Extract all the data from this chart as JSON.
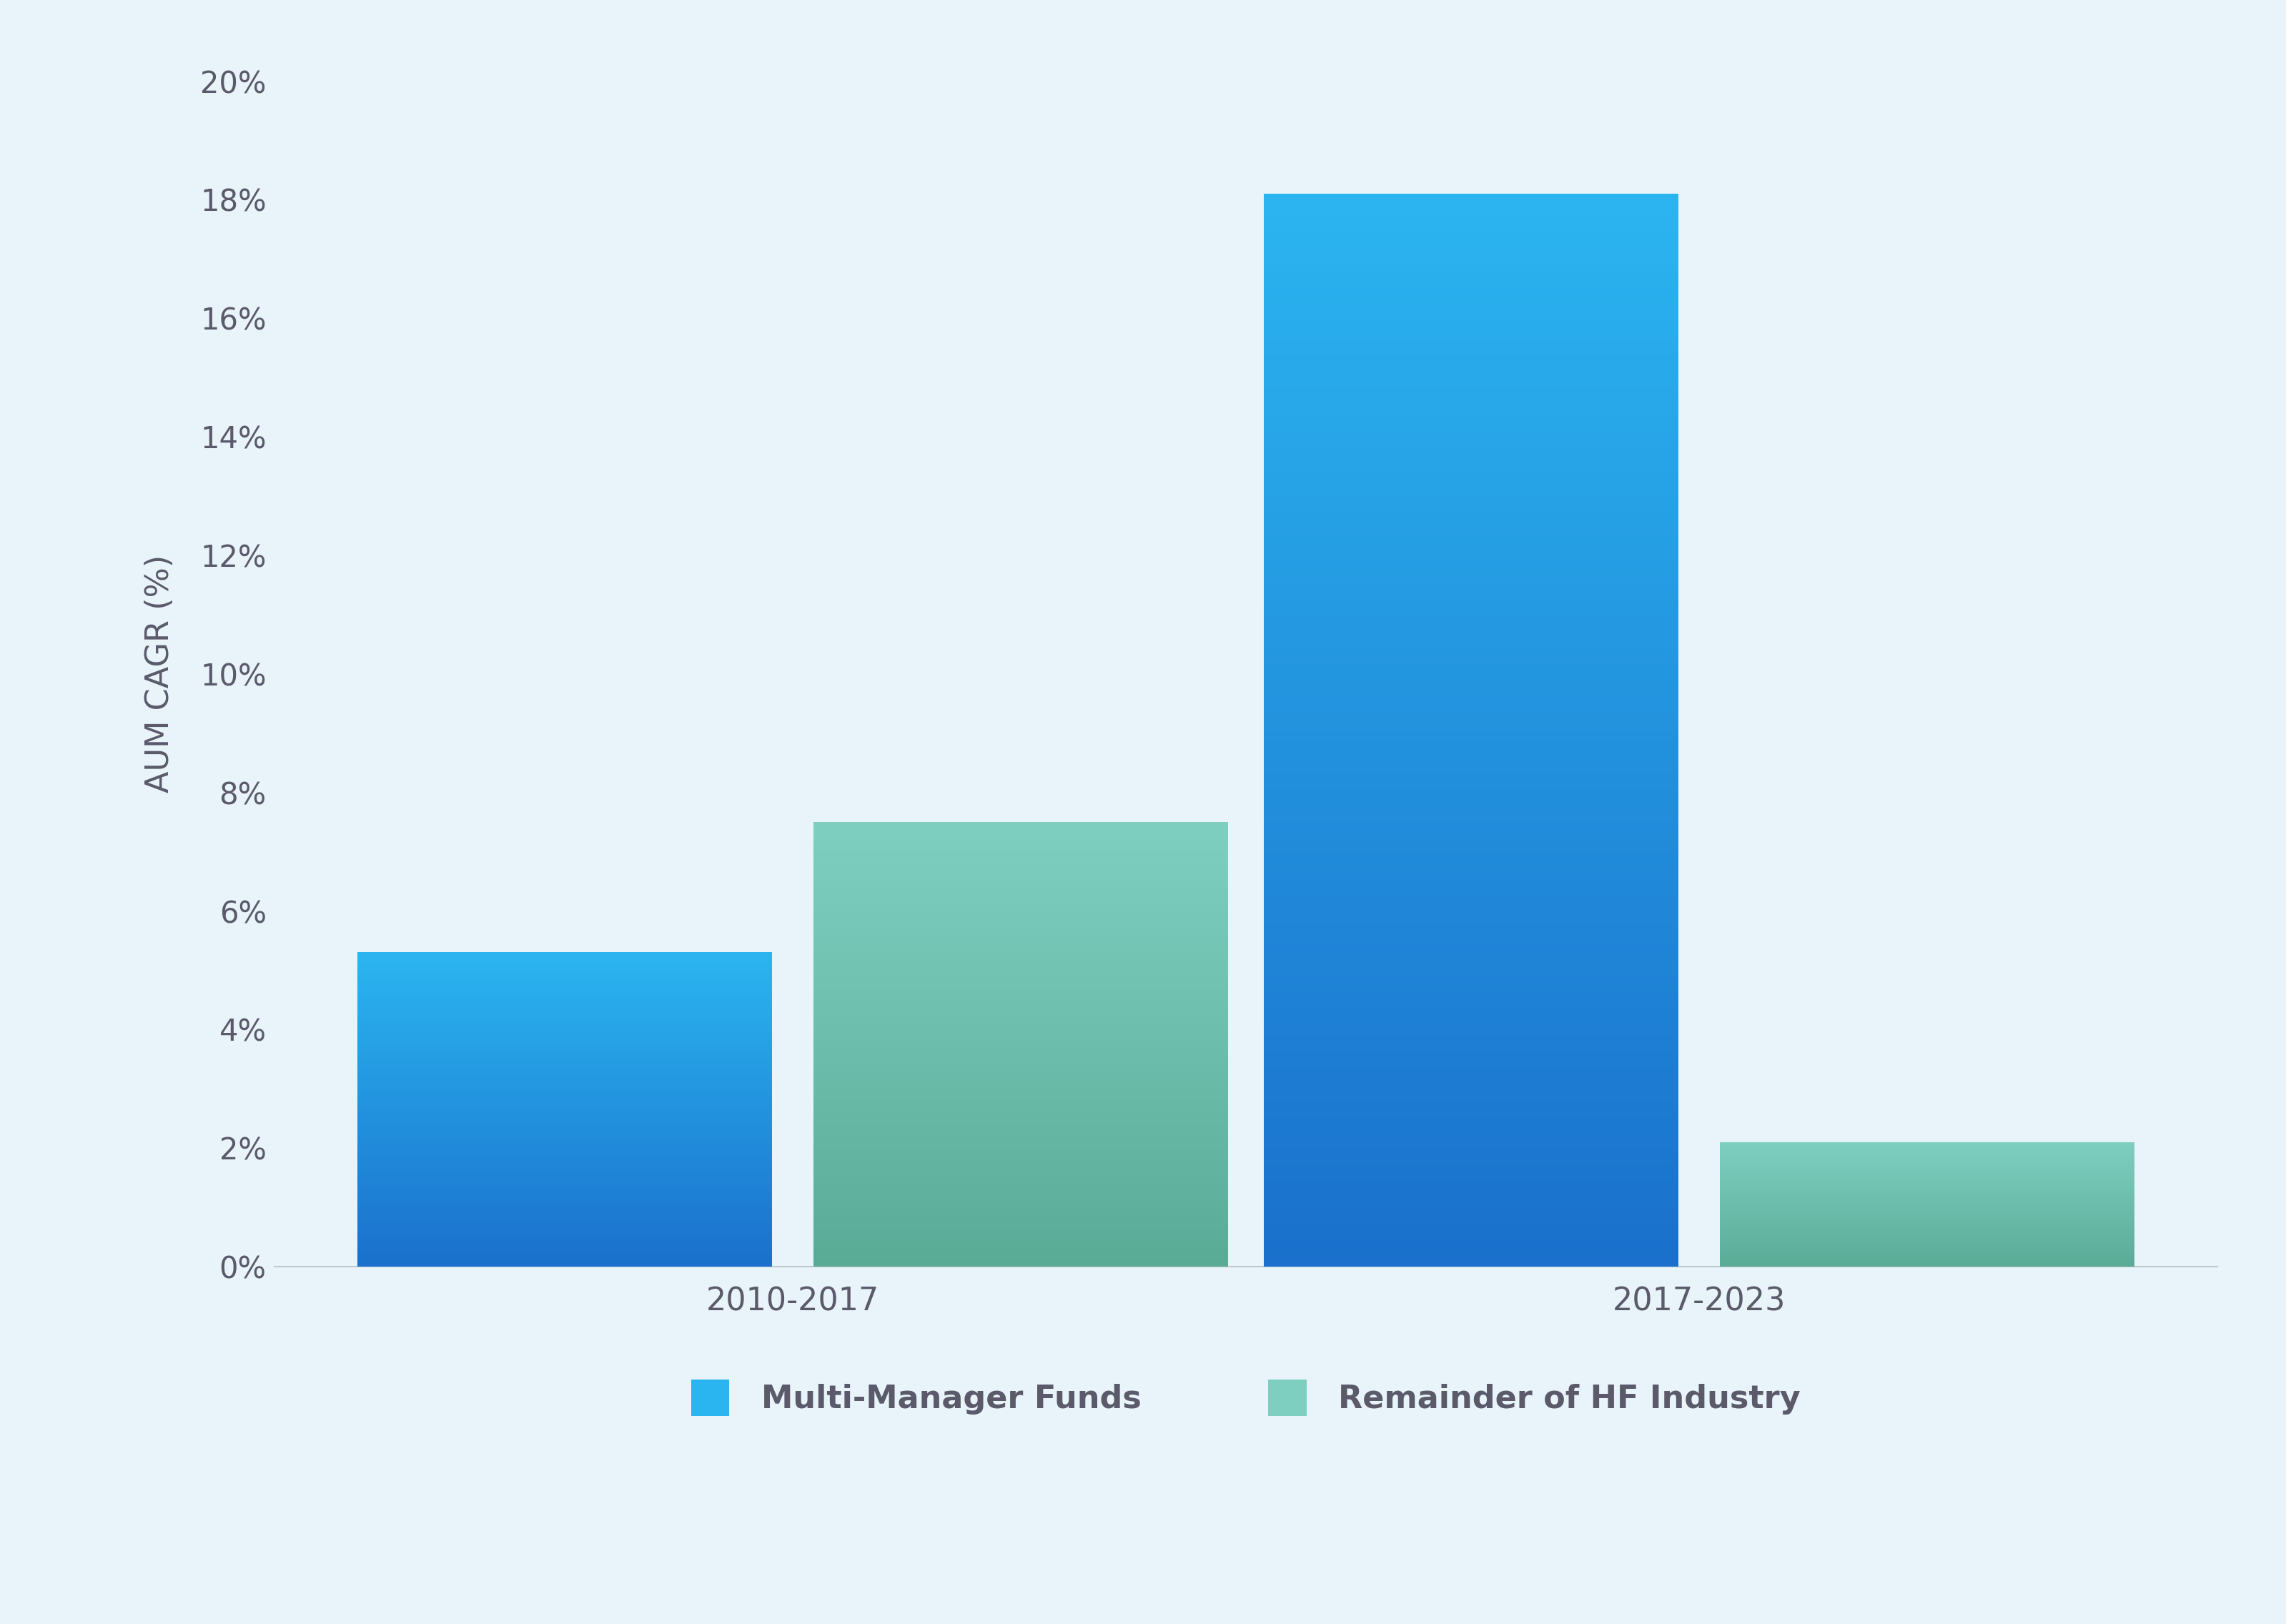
{
  "groups": [
    "2010-2017",
    "2017-2023"
  ],
  "series": [
    {
      "label": "Multi-Manager Funds",
      "values": [
        5.3,
        18.1
      ],
      "color_top": "#2bb5f0",
      "color_bottom": "#1a70cc"
    },
    {
      "label": "Remainder of HF Industry",
      "values": [
        7.5,
        2.1
      ],
      "color_top": "#7ecfc0",
      "color_bottom": "#5aab96"
    }
  ],
  "ylim": [
    0,
    20
  ],
  "yticks": [
    0,
    2,
    4,
    6,
    8,
    10,
    12,
    14,
    16,
    18,
    20
  ],
  "ylabel": "AUM CAGR (%)",
  "background_color": "#e8f3fa",
  "bar_width": 0.32,
  "ylabel_fontsize": 32,
  "tick_fontsize": 30,
  "legend_fontsize": 32,
  "xtick_fontsize": 32,
  "axis_color": "#c0c8d0",
  "text_color": "#5a5a6a",
  "legend_blue": "#2bb5f0",
  "legend_teal": "#6dc0b0"
}
